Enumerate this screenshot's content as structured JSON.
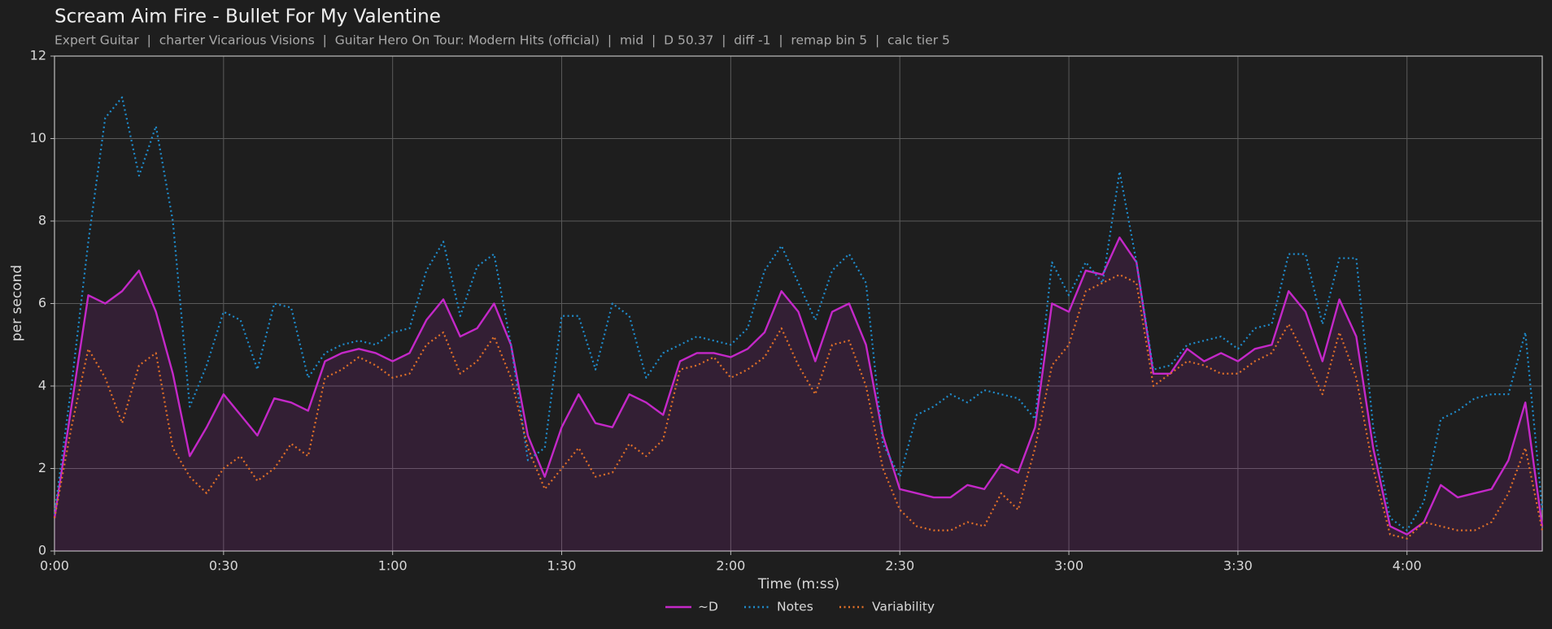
{
  "chart_data": {
    "type": "line",
    "title": "Scream Aim Fire - Bullet For My Valentine",
    "subtitle": "Expert Guitar  |  charter Vicarious Visions  |  Guitar Hero On Tour: Modern Hits (official)  |  mid  |  D 50.37  |  diff -1  |  remap bin 5  |  calc tier 5",
    "xlabel": "Time (m:ss)",
    "ylabel": "per second",
    "x": [
      0,
      3,
      6,
      9,
      12,
      15,
      18,
      21,
      24,
      27,
      30,
      33,
      36,
      39,
      42,
      45,
      48,
      51,
      54,
      57,
      60,
      63,
      66,
      69,
      72,
      75,
      78,
      81,
      84,
      87,
      90,
      93,
      96,
      99,
      102,
      105,
      108,
      111,
      114,
      117,
      120,
      123,
      126,
      129,
      132,
      135,
      138,
      141,
      144,
      147,
      150,
      153,
      156,
      159,
      162,
      165,
      168,
      171,
      174,
      177,
      180,
      183,
      186,
      189,
      192,
      195,
      198,
      201,
      204,
      207,
      210,
      213,
      216,
      219,
      222,
      225,
      228,
      231,
      234,
      237,
      240,
      243,
      246,
      249,
      252,
      255,
      258,
      261,
      264
    ],
    "series": [
      {
        "name": "~D",
        "color": "#c428c8",
        "style": "solid",
        "fill": true,
        "values": [
          0.8,
          3.5,
          6.2,
          6.0,
          6.3,
          6.8,
          5.8,
          4.3,
          2.3,
          3.0,
          3.8,
          3.3,
          2.8,
          3.7,
          3.6,
          3.4,
          4.6,
          4.8,
          4.9,
          4.8,
          4.6,
          4.8,
          5.6,
          6.1,
          5.2,
          5.4,
          6.0,
          5.0,
          2.8,
          1.8,
          3.0,
          3.8,
          3.1,
          3.0,
          3.8,
          3.6,
          3.3,
          4.6,
          4.8,
          4.8,
          4.7,
          4.9,
          5.3,
          6.3,
          5.8,
          4.6,
          5.8,
          6.0,
          5.0,
          2.8,
          1.5,
          1.4,
          1.3,
          1.3,
          1.6,
          1.5,
          2.1,
          1.9,
          3.0,
          6.0,
          5.8,
          6.8,
          6.7,
          7.6,
          7.0,
          4.3,
          4.3,
          4.9,
          4.6,
          4.8,
          4.6,
          4.9,
          5.0,
          6.3,
          5.8,
          4.6,
          6.1,
          5.2,
          2.5,
          0.6,
          0.4,
          0.7,
          1.6,
          1.3,
          1.4,
          1.5,
          2.2,
          3.6,
          0.6
        ]
      },
      {
        "name": "Notes",
        "color": "#1f8ccc",
        "style": "dotted",
        "fill": false,
        "values": [
          0.9,
          4.0,
          7.5,
          10.5,
          11.0,
          9.1,
          10.3,
          8.0,
          3.5,
          4.5,
          5.8,
          5.6,
          4.4,
          6.0,
          5.9,
          4.2,
          4.8,
          5.0,
          5.1,
          5.0,
          5.3,
          5.4,
          6.8,
          7.5,
          5.7,
          6.9,
          7.2,
          5.0,
          2.2,
          2.5,
          5.7,
          5.7,
          4.4,
          6.0,
          5.7,
          4.2,
          4.8,
          5.0,
          5.2,
          5.1,
          5.0,
          5.4,
          6.8,
          7.4,
          6.5,
          5.6,
          6.8,
          7.2,
          6.5,
          2.6,
          1.8,
          3.3,
          3.5,
          3.8,
          3.6,
          3.9,
          3.8,
          3.7,
          3.2,
          7.0,
          6.2,
          7.0,
          6.5,
          9.2,
          7.0,
          4.4,
          4.5,
          5.0,
          5.1,
          5.2,
          4.9,
          5.4,
          5.5,
          7.2,
          7.2,
          5.5,
          7.1,
          7.1,
          3.0,
          0.8,
          0.5,
          1.2,
          3.2,
          3.4,
          3.7,
          3.8,
          3.8,
          5.3,
          1.0
        ]
      },
      {
        "name": "Variability",
        "color": "#e07028",
        "style": "dotted",
        "fill": false,
        "values": [
          0.8,
          3.0,
          4.9,
          4.2,
          3.1,
          4.5,
          4.8,
          2.5,
          1.8,
          1.4,
          2.0,
          2.3,
          1.7,
          2.0,
          2.6,
          2.3,
          4.2,
          4.4,
          4.7,
          4.5,
          4.2,
          4.3,
          5.0,
          5.3,
          4.3,
          4.6,
          5.2,
          4.2,
          2.5,
          1.5,
          2.0,
          2.5,
          1.8,
          1.9,
          2.6,
          2.3,
          2.7,
          4.4,
          4.5,
          4.7,
          4.2,
          4.4,
          4.7,
          5.4,
          4.5,
          3.8,
          5.0,
          5.1,
          4.0,
          2.0,
          1.0,
          0.6,
          0.5,
          0.5,
          0.7,
          0.6,
          1.4,
          1.0,
          2.5,
          4.5,
          5.0,
          6.3,
          6.5,
          6.7,
          6.5,
          4.0,
          4.3,
          4.6,
          4.5,
          4.3,
          4.3,
          4.6,
          4.8,
          5.5,
          4.7,
          3.8,
          5.3,
          4.2,
          2.0,
          0.4,
          0.3,
          0.7,
          0.6,
          0.5,
          0.5,
          0.7,
          1.4,
          2.5,
          0.5
        ]
      }
    ],
    "xlim": [
      0,
      264
    ],
    "xticks": [
      {
        "value": 0,
        "label": "0:00"
      },
      {
        "value": 30,
        "label": "0:30"
      },
      {
        "value": 60,
        "label": "1:00"
      },
      {
        "value": 90,
        "label": "1:30"
      },
      {
        "value": 120,
        "label": "2:00"
      },
      {
        "value": 150,
        "label": "2:30"
      },
      {
        "value": 180,
        "label": "3:00"
      },
      {
        "value": 210,
        "label": "3:30"
      },
      {
        "value": 240,
        "label": "4:00"
      }
    ],
    "ylim": [
      0,
      12
    ],
    "yticks": [
      0,
      2,
      4,
      6,
      8,
      10,
      12
    ],
    "grid": true,
    "legend": "bottom"
  }
}
